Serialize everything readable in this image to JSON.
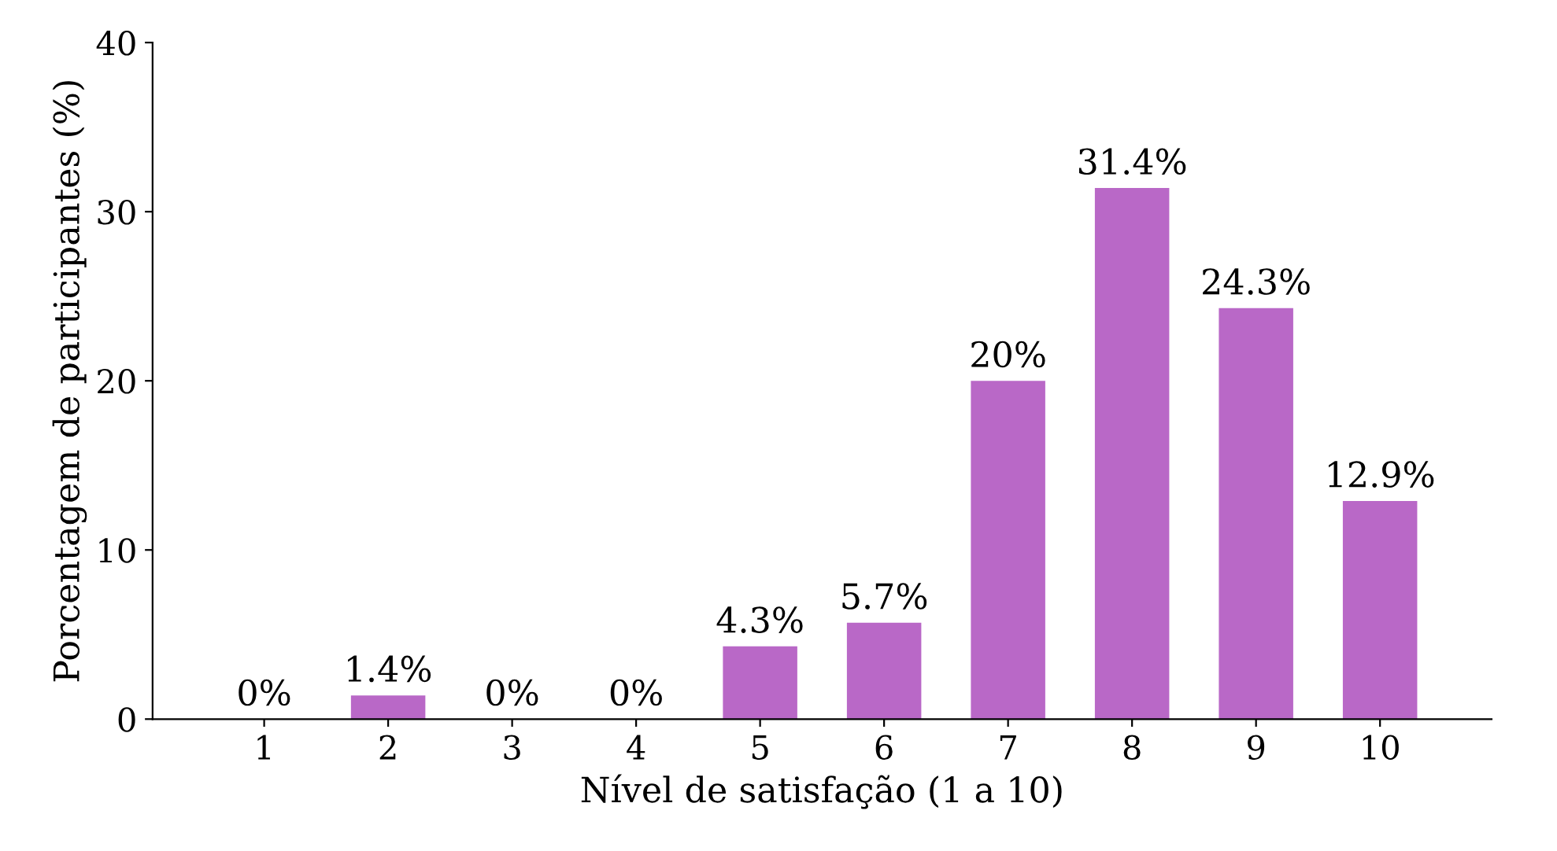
{
  "chart_data": {
    "type": "bar",
    "xlabel": "Nível de satisfação (1 a 10)",
    "ylabel": "Porcentagem de participantes (%)",
    "categories": [
      "1",
      "2",
      "3",
      "4",
      "5",
      "6",
      "7",
      "8",
      "9",
      "10"
    ],
    "values": [
      0,
      1.4,
      0,
      0,
      4.3,
      5.7,
      20,
      31.4,
      24.3,
      12.9
    ],
    "value_labels": [
      "0%",
      "1.4%",
      "0%",
      "0%",
      "4.3%",
      "5.7%",
      "20%",
      "31.4%",
      "24.3%",
      "12.9%"
    ],
    "color": "#b968c7",
    "ylim": [
      0,
      40
    ],
    "yticks": [
      0,
      10,
      20,
      30,
      40
    ],
    "grid": false
  }
}
